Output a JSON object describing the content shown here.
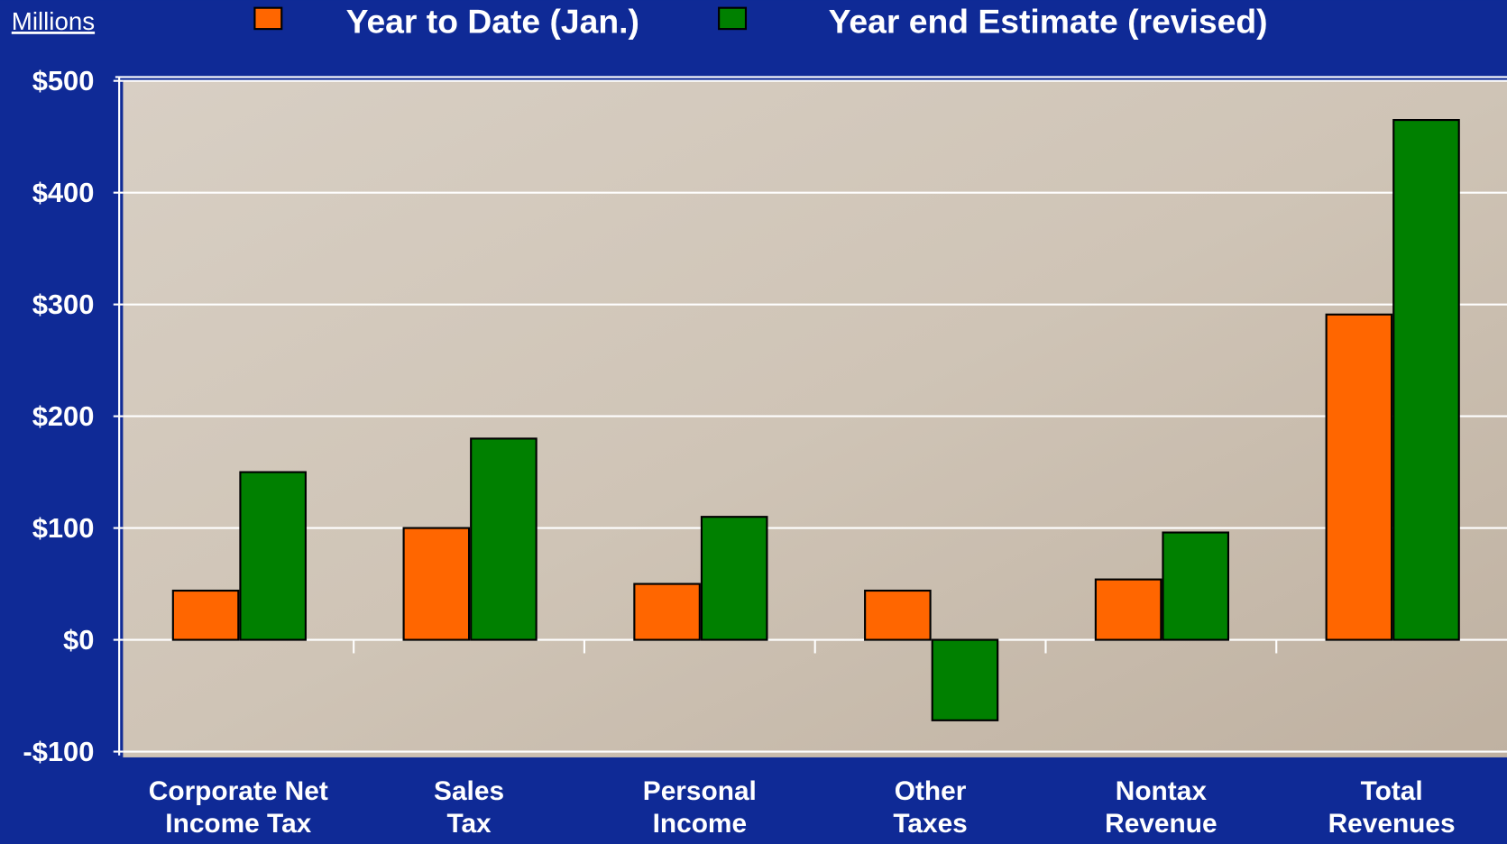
{
  "chart_data": {
    "type": "bar",
    "y_axis_label": "Millions",
    "categories": [
      "Corporate Net\nIncome Tax",
      "Sales\nTax",
      "Personal\nIncome",
      "Other\nTaxes",
      "Nontax\nRevenue",
      "Total\nRevenues"
    ],
    "series": [
      {
        "name": "Year to Date (Jan.)",
        "color": "#ff6600",
        "values": [
          44,
          100,
          50,
          44,
          54,
          291
        ]
      },
      {
        "name": "Year end Estimate (revised)",
        "color": "#008000",
        "values": [
          150,
          180,
          110,
          -72,
          96,
          465
        ]
      }
    ],
    "ylim": [
      -100,
      500
    ],
    "yticks": [
      {
        "value": -100,
        "label": "-$100"
      },
      {
        "value": 0,
        "label": "$0"
      },
      {
        "value": 100,
        "label": "$100"
      },
      {
        "value": 200,
        "label": "$200"
      },
      {
        "value": 300,
        "label": "$300"
      },
      {
        "value": 400,
        "label": "$400"
      },
      {
        "value": 500,
        "label": "$500"
      }
    ],
    "grid": true
  }
}
